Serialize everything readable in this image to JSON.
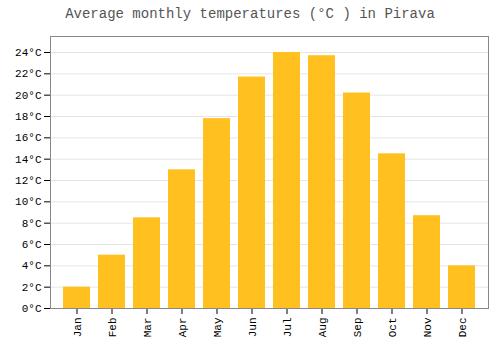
{
  "chart_data": {
    "type": "bar",
    "title": "Average monthly temperatures (°C ) in Pirava",
    "categories": [
      "Jan",
      "Feb",
      "Mar",
      "Apr",
      "May",
      "Jun",
      "Jul",
      "Aug",
      "Sep",
      "Oct",
      "Nov",
      "Dec"
    ],
    "values": [
      2.0,
      5.0,
      8.5,
      13.0,
      17.8,
      21.7,
      24.0,
      23.7,
      20.2,
      14.5,
      8.7,
      4.0
    ],
    "color": "#FFC020",
    "ylim": [
      0,
      25.5
    ],
    "yticks": [
      {
        "value": 0,
        "label": "0°C"
      },
      {
        "value": 2,
        "label": "2°C"
      },
      {
        "value": 4,
        "label": "4°C"
      },
      {
        "value": 6,
        "label": "6°C"
      },
      {
        "value": 8,
        "label": "8°C"
      },
      {
        "value": 10,
        "label": "10°C"
      },
      {
        "value": 12,
        "label": "12°C"
      },
      {
        "value": 14,
        "label": "14°C"
      },
      {
        "value": 16,
        "label": "16°C"
      },
      {
        "value": 18,
        "label": "18°C"
      },
      {
        "value": 20,
        "label": "20°C"
      },
      {
        "value": 22,
        "label": "22°C"
      },
      {
        "value": 24,
        "label": "24°C"
      }
    ],
    "grid": true
  }
}
